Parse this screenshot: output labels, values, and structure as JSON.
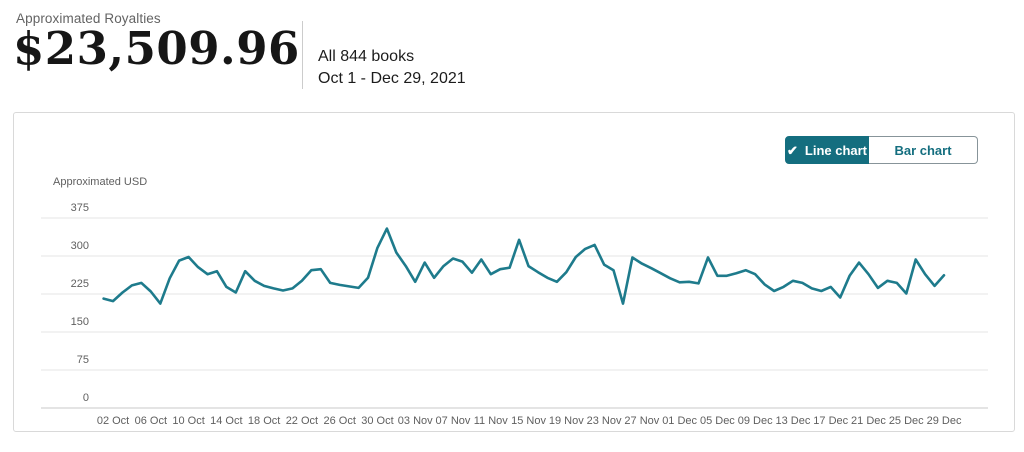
{
  "header": {
    "label": "Approximated Royalties",
    "amount": "$23,509.96",
    "scope": "All 844 books",
    "date_range": "Oct 1 - Dec 29, 2021"
  },
  "toolbar": {
    "line_chart_label": "Line chart",
    "bar_chart_label": "Bar chart",
    "check_icon": "✔"
  },
  "colors": {
    "accent": "#146e7f",
    "line": "#1e7b8c",
    "grid": "#e4e4e4",
    "axis": "#c9c9c9",
    "tick_text": "#5f5f5f",
    "panel_border": "#d9d9d9"
  },
  "chart_data": {
    "type": "line",
    "title": "",
    "ylabel": "Approximated USD",
    "xlabel": "",
    "ylim": [
      0,
      375
    ],
    "yticks": [
      0,
      75,
      150,
      225,
      300,
      375
    ],
    "grid": true,
    "legend": "none",
    "x_start": "Oct 1, 2021",
    "x_end": "Dec 29, 2021",
    "xtick_labels": [
      "02 Oct",
      "06 Oct",
      "10 Oct",
      "14 Oct",
      "18 Oct",
      "22 Oct",
      "26 Oct",
      "30 Oct",
      "03 Nov",
      "07 Nov",
      "11 Nov",
      "15 Nov",
      "19 Nov",
      "23 Nov",
      "27 Nov",
      "01 Dec",
      "05 Dec",
      "09 Dec",
      "13 Dec",
      "17 Dec",
      "21 Dec",
      "25 Dec",
      "29 Dec"
    ],
    "xtick_day_indices": [
      1,
      5,
      9,
      13,
      17,
      21,
      25,
      29,
      33,
      37,
      41,
      45,
      49,
      53,
      57,
      61,
      65,
      69,
      73,
      77,
      81,
      85,
      89
    ],
    "series": [
      {
        "name": "Approximated USD",
        "color": "#1e7b8c",
        "values": [
          216,
          211,
          228,
          242,
          247,
          230,
          206,
          256,
          291,
          298,
          278,
          264,
          270,
          239,
          228,
          270,
          251,
          241,
          236,
          232,
          236,
          251,
          272,
          274,
          247,
          243,
          240,
          237,
          257,
          316,
          354,
          307,
          280,
          249,
          287,
          257,
          280,
          295,
          289,
          267,
          293,
          264,
          274,
          277,
          332,
          280,
          268,
          257,
          249,
          268,
          298,
          314,
          322,
          283,
          272,
          206,
          297,
          285,
          276,
          266,
          256,
          248,
          249,
          246,
          297,
          261,
          261,
          266,
          272,
          264,
          244,
          231,
          239,
          251,
          247,
          236,
          231,
          239,
          218,
          261,
          287,
          264,
          237,
          251,
          247,
          226,
          293,
          264,
          241,
          262
        ]
      }
    ]
  }
}
